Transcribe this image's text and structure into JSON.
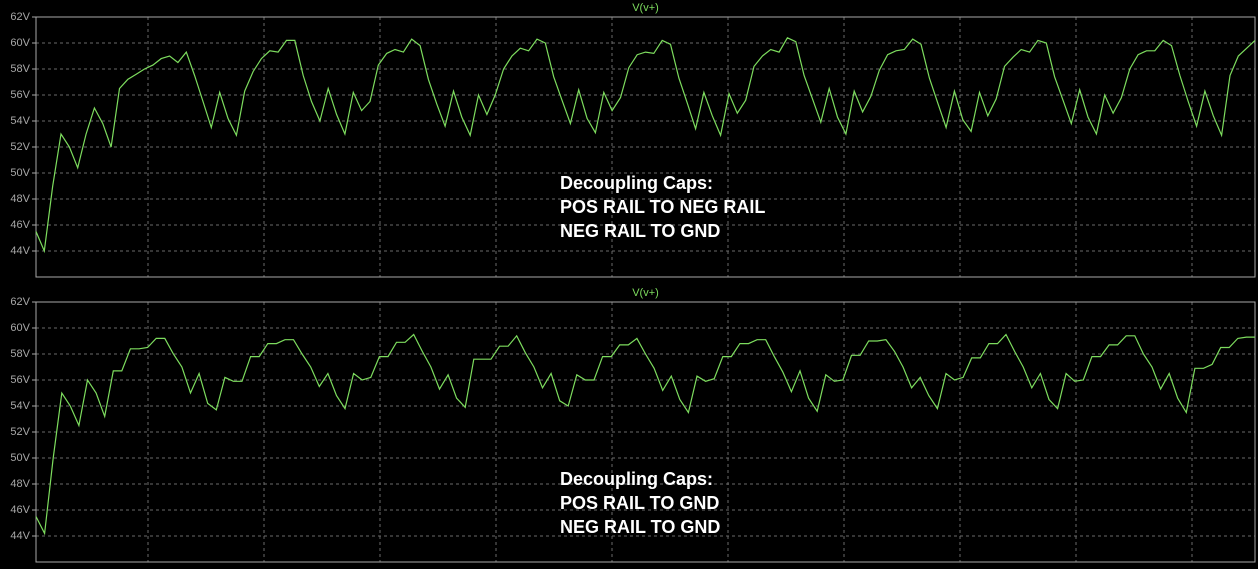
{
  "chart_data": [
    {
      "type": "line",
      "title": "V(v+)",
      "color": "#7ddc5e",
      "grid": true,
      "ylim": [
        42,
        62
      ],
      "yticks": [
        {
          "value": 44,
          "label": "44V"
        },
        {
          "value": 46,
          "label": "46V"
        },
        {
          "value": 48,
          "label": "48V"
        },
        {
          "value": 50,
          "label": "50V"
        },
        {
          "value": 52,
          "label": "52V"
        },
        {
          "value": 54,
          "label": "54V"
        },
        {
          "value": 56,
          "label": "56V"
        },
        {
          "value": 58,
          "label": "58V"
        },
        {
          "value": 60,
          "label": "60V"
        },
        {
          "value": 62,
          "label": "62V"
        }
      ],
      "annotations": [
        "Decoupling Caps:",
        "POS RAIL TO NEG RAIL",
        "NEG RAIL TO GND"
      ],
      "values": [
        45.5,
        44,
        49,
        53,
        52,
        50.4,
        53,
        55,
        53.8,
        52,
        56.5,
        57.2,
        57.6,
        58,
        58.3,
        58.8,
        59,
        58.5,
        59.3,
        57.5,
        55.5,
        53.5,
        56.2,
        54.2,
        52.9,
        56.3,
        57.8,
        58.8,
        59.4,
        59.3,
        60.2,
        60.2,
        57.5,
        55.5,
        54,
        56.5,
        54.5,
        53,
        56.2,
        54.8,
        55.5,
        58.3,
        59.2,
        59.5,
        59.3,
        60.3,
        59.8,
        57.2,
        55.3,
        53.6,
        56.3,
        54.3,
        52.9,
        56,
        54.5,
        56,
        58,
        59,
        59.6,
        59.4,
        60.3,
        60,
        57.4,
        55.6,
        53.8,
        56.4,
        54.2,
        53.1,
        56.2,
        54.8,
        55.8,
        58.1,
        59.1,
        59.3,
        59.2,
        60.2,
        59.9,
        57.3,
        55.4,
        53.4,
        56.2,
        54.4,
        52.9,
        56.1,
        54.6,
        55.6,
        58.2,
        59,
        59.5,
        59.3,
        60.4,
        60.1,
        57.5,
        55.7,
        53.9,
        56.5,
        54.3,
        53,
        56.3,
        54.7,
        55.9,
        57.9,
        59.1,
        59.4,
        59.5,
        60.3,
        59.9,
        57.3,
        55.4,
        53.5,
        56.3,
        54.1,
        53.2,
        56.2,
        54.4,
        55.7,
        58.2,
        58.9,
        59.5,
        59.3,
        60.2,
        60,
        57.4,
        55.6,
        53.8,
        56.4,
        54.3,
        53,
        56,
        54.6,
        55.8,
        58,
        59.1,
        59.4,
        59.4,
        60.2,
        59.8,
        57.5,
        55.5,
        53.6,
        56.3,
        54.4,
        52.9,
        57.5,
        59,
        59.6,
        60.2
      ]
    },
    {
      "type": "line",
      "title": "V(v+)",
      "color": "#7ddc5e",
      "grid": true,
      "ylim": [
        42,
        62
      ],
      "yticks": [
        {
          "value": 44,
          "label": "44V"
        },
        {
          "value": 46,
          "label": "46V"
        },
        {
          "value": 48,
          "label": "48V"
        },
        {
          "value": 50,
          "label": "50V"
        },
        {
          "value": 52,
          "label": "52V"
        },
        {
          "value": 54,
          "label": "54V"
        },
        {
          "value": 56,
          "label": "56V"
        },
        {
          "value": 58,
          "label": "58V"
        },
        {
          "value": 60,
          "label": "60V"
        },
        {
          "value": 62,
          "label": "62V"
        }
      ],
      "annotations": [
        "Decoupling Caps:",
        "POS RAIL TO GND",
        "NEG RAIL TO GND"
      ],
      "values": [
        45.5,
        44.2,
        50,
        55,
        54,
        52.5,
        56,
        55,
        53.2,
        56.7,
        56.7,
        58.4,
        58.4,
        58.5,
        59.2,
        59.2,
        58,
        57,
        55,
        56.5,
        54.2,
        53.7,
        56.2,
        55.9,
        55.9,
        57.8,
        57.8,
        58.8,
        58.8,
        59.1,
        59.1,
        58,
        57,
        55.5,
        56.5,
        54.8,
        53.8,
        56.5,
        56,
        56.2,
        57.8,
        57.8,
        58.9,
        58.9,
        59.5,
        58.2,
        57,
        55.3,
        56.4,
        54.6,
        53.9,
        57.6,
        57.6,
        57.6,
        58.6,
        58.6,
        59.4,
        58.1,
        57,
        55.4,
        56.5,
        54.4,
        54,
        56.4,
        56,
        56,
        57.8,
        57.8,
        58.7,
        58.7,
        59.2,
        58,
        56.9,
        55.2,
        56.3,
        54.5,
        53.5,
        56.3,
        55.9,
        56.1,
        57.8,
        57.8,
        58.8,
        58.8,
        59.1,
        59.1,
        57.8,
        56.6,
        55.1,
        56.7,
        54.6,
        53.6,
        56.4,
        55.9,
        56,
        57.9,
        57.9,
        59,
        59,
        59.1,
        58.2,
        57,
        55.4,
        56.2,
        54.8,
        53.8,
        56.5,
        56,
        56.2,
        57.7,
        57.7,
        58.8,
        58.8,
        59.5,
        58.2,
        57,
        55.4,
        56.5,
        54.5,
        53.8,
        56.5,
        55.9,
        56,
        57.8,
        57.8,
        58.7,
        58.7,
        59.4,
        59.4,
        58,
        57,
        55.3,
        56.5,
        54.6,
        53.5,
        56.9,
        56.9,
        57.2,
        58.5,
        58.5,
        59.2,
        59.3,
        59.3
      ]
    }
  ]
}
